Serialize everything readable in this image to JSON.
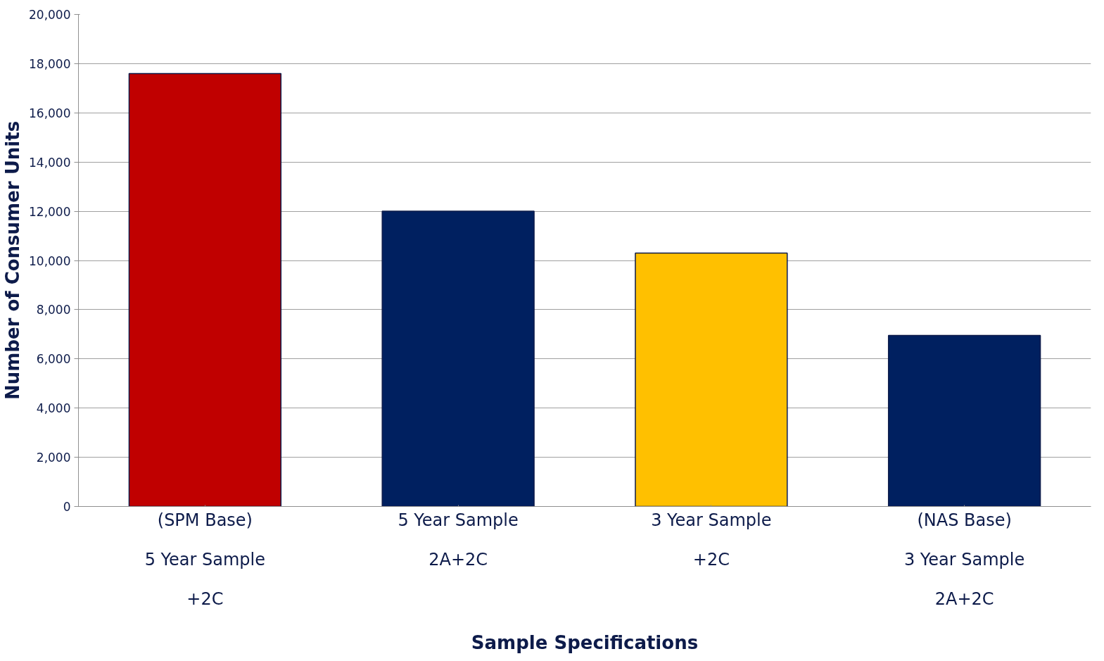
{
  "chart_data": {
    "type": "bar",
    "xlabel": "Sample Specifications",
    "ylabel": "Number of Consumer Units",
    "categories": [
      "(SPM Base)\n5 Year Sample\n+2C",
      "5 Year Sample\n2A+2C",
      "3 Year Sample\n+2C",
      "(NAS Base)\n3 Year Sample\n2A+2C"
    ],
    "values": [
      17600,
      12000,
      10300,
      6950
    ],
    "colors": [
      "#c00000",
      "#002060",
      "#ffc000",
      "#002060"
    ],
    "ylim": [
      0,
      20000
    ],
    "yticks": [
      {
        "value": 0,
        "label": "0"
      },
      {
        "value": 2000,
        "label": "2,000"
      },
      {
        "value": 4000,
        "label": "4,000"
      },
      {
        "value": 6000,
        "label": "6,000"
      },
      {
        "value": 8000,
        "label": "8,000"
      },
      {
        "value": 10000,
        "label": "10,000"
      },
      {
        "value": 12000,
        "label": "12,000"
      },
      {
        "value": 14000,
        "label": "14,000"
      },
      {
        "value": 16000,
        "label": "16,000"
      },
      {
        "value": 18000,
        "label": "18,000"
      },
      {
        "value": 20000,
        "label": "20,000"
      }
    ],
    "grid": "y"
  }
}
